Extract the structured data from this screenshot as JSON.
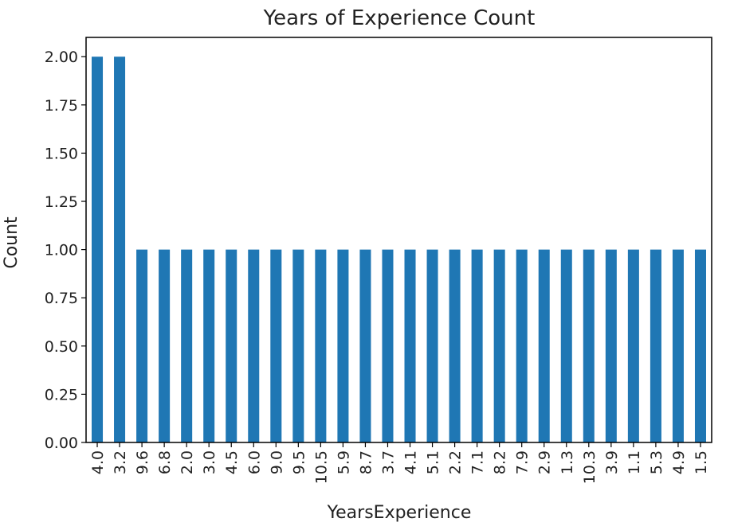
{
  "chart_data": {
    "type": "bar",
    "title": "Years of Experience Count",
    "xlabel": "YearsExperience",
    "ylabel": "Count",
    "categories": [
      "4.0",
      "3.2",
      "9.6",
      "6.8",
      "2.0",
      "3.0",
      "4.5",
      "6.0",
      "9.0",
      "9.5",
      "10.5",
      "5.9",
      "8.7",
      "3.7",
      "4.1",
      "5.1",
      "2.2",
      "7.1",
      "8.2",
      "7.9",
      "2.9",
      "1.3",
      "10.3",
      "3.9",
      "1.1",
      "5.3",
      "4.9",
      "1.5"
    ],
    "values": [
      2,
      2,
      1,
      1,
      1,
      1,
      1,
      1,
      1,
      1,
      1,
      1,
      1,
      1,
      1,
      1,
      1,
      1,
      1,
      1,
      1,
      1,
      1,
      1,
      1,
      1,
      1,
      1
    ],
    "ylim": [
      0,
      2.1
    ],
    "yticks": [
      "0.00",
      "0.25",
      "0.50",
      "0.75",
      "1.00",
      "1.25",
      "1.50",
      "1.75",
      "2.00"
    ],
    "grid": false,
    "legend": false,
    "bar_color": "#1f77b4"
  }
}
